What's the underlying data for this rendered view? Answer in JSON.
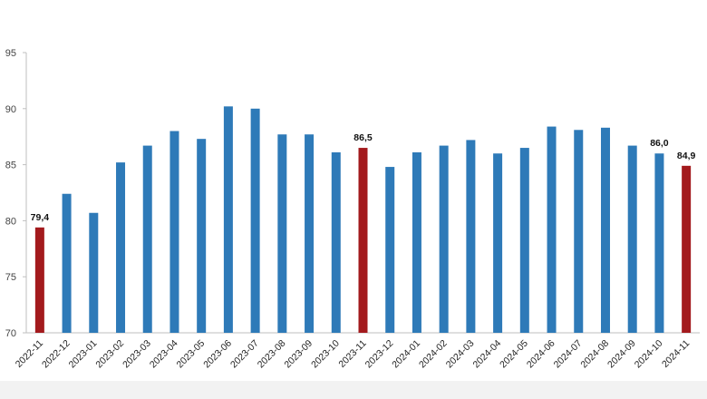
{
  "chart_data": {
    "type": "bar",
    "categories": [
      "2022-11",
      "2022-12",
      "2023-01",
      "2023-02",
      "2023-03",
      "2023-04",
      "2023-05",
      "2023-06",
      "2023-07",
      "2023-08",
      "2023-09",
      "2023-10",
      "2023-11",
      "2023-12",
      "2024-01",
      "2024-02",
      "2024-03",
      "2024-04",
      "2024-05",
      "2024-06",
      "2024-07",
      "2024-08",
      "2024-09",
      "2024-10",
      "2024-11"
    ],
    "values": [
      79.4,
      82.4,
      80.7,
      85.2,
      86.7,
      88.0,
      87.3,
      90.2,
      90.0,
      87.7,
      87.7,
      86.1,
      86.5,
      84.8,
      86.1,
      86.7,
      87.2,
      86.0,
      86.5,
      88.4,
      88.1,
      88.3,
      86.7,
      86.0,
      84.9
    ],
    "highlighted": [
      "2022-11",
      "2023-11",
      "2024-11"
    ],
    "data_labels": [
      {
        "category": "2022-11",
        "text": "79,4"
      },
      {
        "category": "2023-11",
        "text": "86,5"
      },
      {
        "category": "2024-10",
        "text": "86,0"
      },
      {
        "category": "2024-11",
        "text": "84,9"
      }
    ],
    "y_ticks": [
      "70",
      "75",
      "80",
      "85",
      "90",
      "95"
    ],
    "ylim": [
      70,
      95
    ],
    "title": "",
    "xlabel": "",
    "ylabel": "",
    "grid": false,
    "colors": {
      "bar": "#2e7ab8",
      "highlight": "#a31a1d",
      "axis": "#bfbfbf",
      "bottom_band": "#f2f2f2"
    }
  }
}
